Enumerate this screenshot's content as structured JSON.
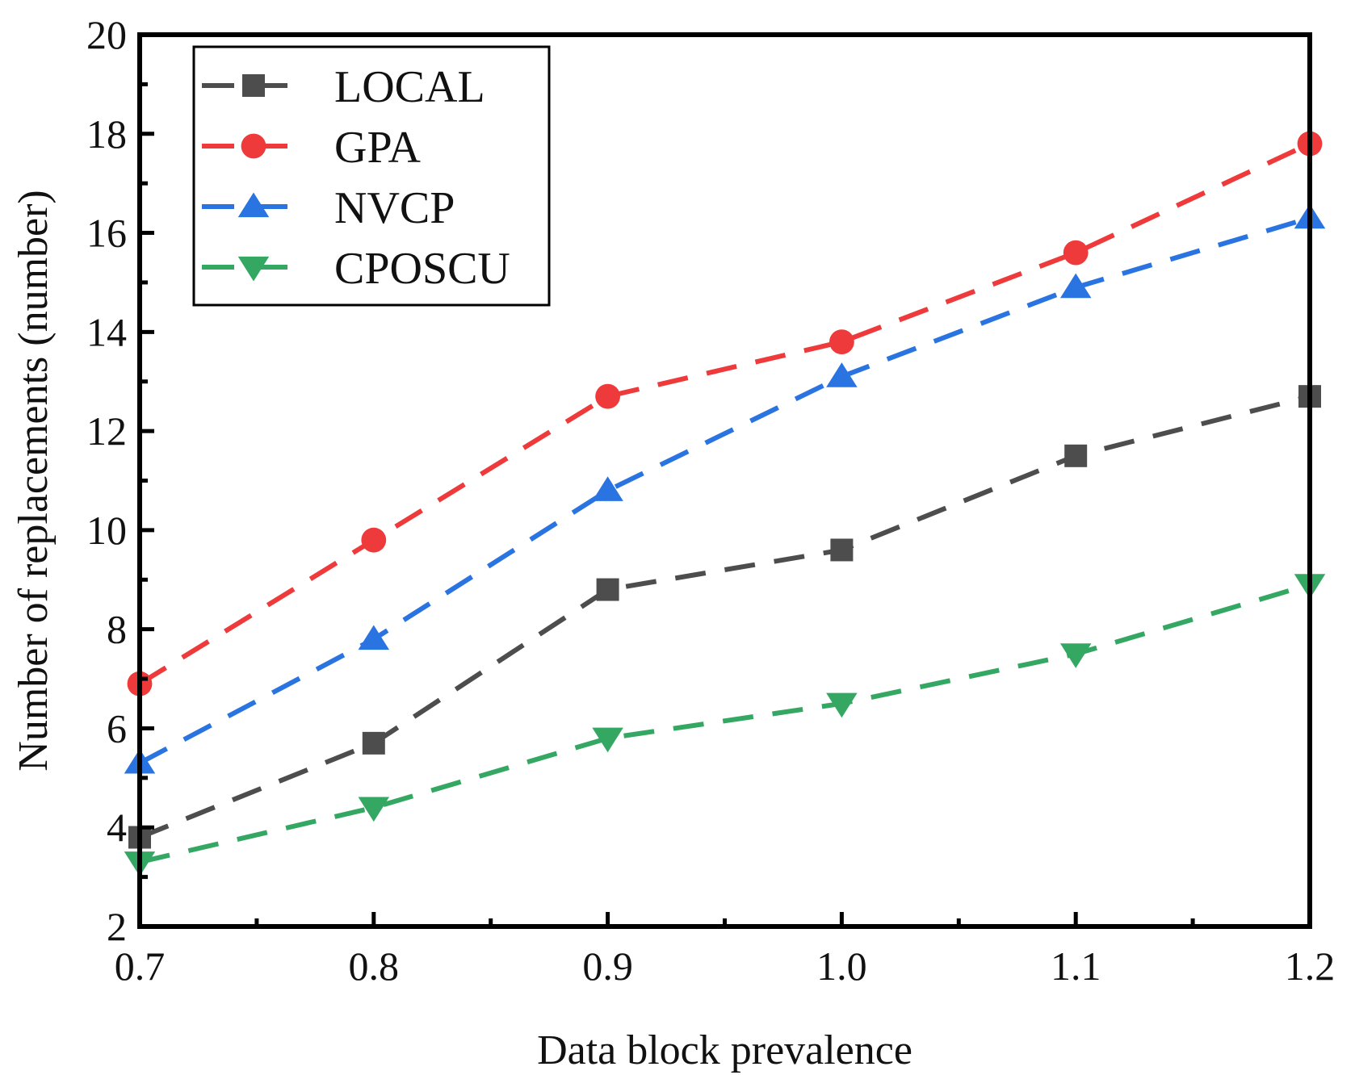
{
  "chart_data": {
    "type": "line",
    "title": "",
    "xlabel": "Data block prevalence",
    "ylabel": "Number of replacements (number)",
    "x": [
      0.7,
      0.8,
      0.9,
      1.0,
      1.1,
      1.2
    ],
    "xtick_labels": [
      "0.7",
      "0.8",
      "0.9",
      "1.0",
      "1.1",
      "1.2"
    ],
    "ytick_labels": [
      "2",
      "4",
      "6",
      "8",
      "10",
      "12",
      "14",
      "16",
      "18",
      "20"
    ],
    "xlim": [
      0.7,
      1.2
    ],
    "ylim": [
      2,
      20
    ],
    "grid": false,
    "legend_position": "top-left",
    "series": [
      {
        "name": "LOCAL",
        "color": "#4d4d4d",
        "marker": "square",
        "values": [
          3.8,
          5.7,
          8.8,
          9.6,
          11.5,
          12.7
        ]
      },
      {
        "name": "GPA",
        "color": "#ee3a3a",
        "marker": "circle",
        "values": [
          6.9,
          9.8,
          12.7,
          13.8,
          15.6,
          17.8
        ]
      },
      {
        "name": "NVCP",
        "color": "#2a74e2",
        "marker": "triangle-up",
        "values": [
          5.3,
          7.8,
          10.8,
          13.1,
          14.9,
          16.3
        ]
      },
      {
        "name": "CPOSCU",
        "color": "#34a863",
        "marker": "triangle-down",
        "values": [
          3.3,
          4.4,
          5.8,
          6.5,
          7.5,
          8.9
        ]
      }
    ]
  }
}
